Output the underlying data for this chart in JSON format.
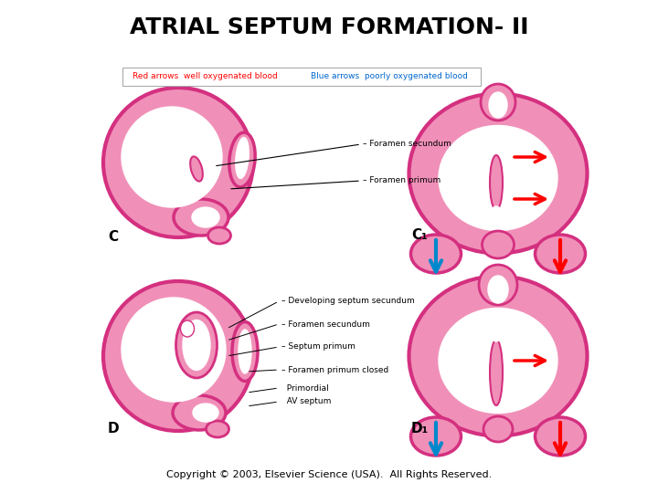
{
  "title": "ATRIAL SEPTUM FORMATION- II",
  "title_fontsize": 18,
  "title_fontweight": "bold",
  "copyright_text": "Copyright © 2003, Elsevier Science (USA).  All Rights Reserved.",
  "copyright_fontsize": 8,
  "bg_color": "#ffffff",
  "pink_edge": "#d43080",
  "pink_fill": "#f090b8",
  "pink_dark": "#e060a0",
  "white_fill": "#ffffff",
  "label_C": "C",
  "label_C1": "C₁",
  "label_D": "D",
  "label_D1": "D₁"
}
